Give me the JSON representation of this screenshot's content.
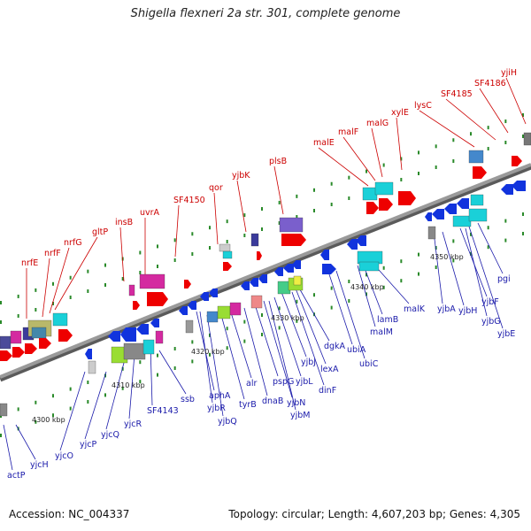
{
  "title": "Shigella flexneri 2a str. 301, complete genome",
  "footer": {
    "accession": "Accession: NC_004337",
    "summary": "Topology: circular; Length: 4,607,203 bp; Genes: 4,305"
  },
  "scale": {
    "ticks": [
      "4300 kbp",
      "4310 kbp",
      "4320 kbp",
      "4330 kbp",
      "4340 kbp",
      "4350 kbp"
    ]
  },
  "genes_top": [
    "nrfE",
    "nrfF",
    "nrfG",
    "gltP",
    "insB",
    "uvrA",
    "SF4150",
    "qor",
    "yjbK",
    "plsB",
    "malE",
    "malF",
    "malG",
    "xylE",
    "lysC",
    "SF4185",
    "SF4186",
    "yjiH"
  ],
  "genes_bottom": [
    "actP",
    "yjcH",
    "yjcO",
    "yjcP",
    "yjcQ",
    "yjcR",
    "SF4143",
    "ssb",
    "aphA",
    "yjbR",
    "yjbQ",
    "tyrB",
    "alr",
    "dnaB",
    "pspG",
    "yjbN",
    "yjbM",
    "yjbL",
    "yjbJ",
    "dinF",
    "lexA",
    "dgkA",
    "ubiA",
    "ubiC",
    "malM",
    "lamB",
    "malK",
    "yjbA",
    "yjbH",
    "yjbF",
    "yjbG",
    "yjbE",
    "pgi"
  ],
  "colors": {
    "label_top": "#cc0000",
    "label_bottom": "#1a1aaa",
    "backbone": "#8c8c8c",
    "forward_strand": "#ee0000",
    "reverse_strand": "#1133dd",
    "tick": "#2a8a2a"
  }
}
